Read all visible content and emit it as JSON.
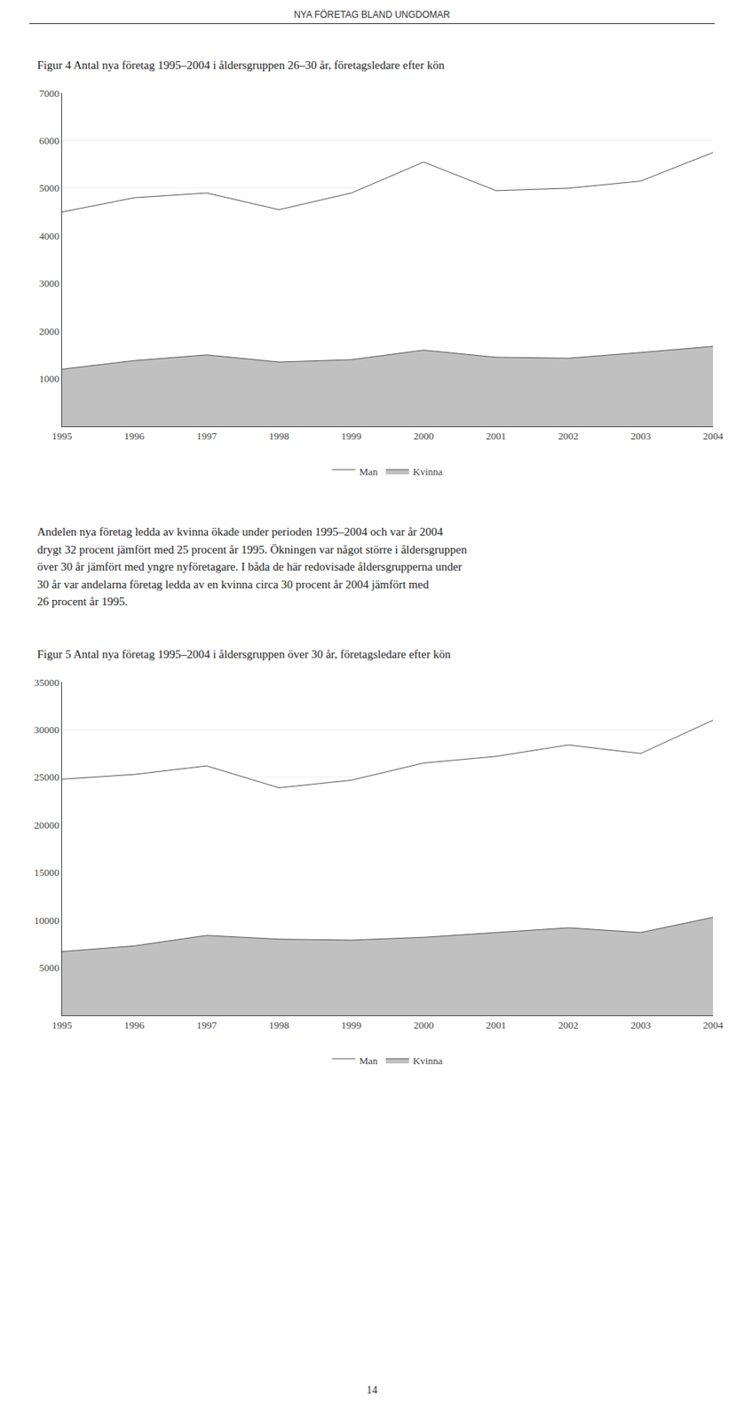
{
  "page_title": "NYA FÖRETAG BLAND UNGDOMAR",
  "body_text": [
    "Andelen nya företag ledda av kvinna ökade under perioden 1995–2004 och var år 2004",
    "drygt 32 procent jämfört med 25 procent år 1995. Ökningen var något större i åldersgruppen",
    "över 30 år jämfört med yngre nyföretagare. I båda de här redovisade åldersgrupperna under",
    "30 år var andelarna företag ledda av en kvinna circa 30 procent år 2004 jämfört med",
    "26 procent år 1995."
  ],
  "page_number": "14",
  "chart_data": [
    {
      "type": "area",
      "title": "Figur 4 Antal nya företag 1995–2004 i åldersgruppen 26–30 år, företagsledare efter kön",
      "x": [
        1995,
        1996,
        1997,
        1998,
        1999,
        2000,
        2001,
        2002,
        2003,
        2004
      ],
      "series": [
        {
          "name": "Kvinna",
          "color": "#c0c0c0",
          "values": [
            1200,
            1380,
            1500,
            1350,
            1400,
            1600,
            1450,
            1430,
            1550,
            1680
          ]
        },
        {
          "name": "Man",
          "color": "#ffffff",
          "values": [
            4500,
            4800,
            4900,
            4550,
            4900,
            5550,
            4950,
            5000,
            5150,
            5750
          ]
        }
      ],
      "xlim": [
        1995,
        2004
      ],
      "xticks": [
        1995,
        1996,
        1997,
        1998,
        1999,
        2000,
        2001,
        2002,
        2003,
        2004
      ],
      "ylim": [
        0,
        7000
      ],
      "yticks": [
        1000,
        2000,
        3000,
        4000,
        5000,
        6000,
        7000
      ],
      "grid": true,
      "legend": "bottom"
    },
    {
      "type": "area",
      "title": "Figur 5 Antal nya företag 1995–2004 i åldersgruppen över 30 år, företagsledare efter kön",
      "x": [
        1995,
        1996,
        1997,
        1998,
        1999,
        2000,
        2001,
        2002,
        2003,
        2004
      ],
      "series": [
        {
          "name": "Kvinna",
          "color": "#c0c0c0",
          "values": [
            6700,
            7300,
            8400,
            8000,
            7900,
            8200,
            8700,
            9200,
            8700,
            10300
          ]
        },
        {
          "name": "Man",
          "color": "#ffffff",
          "values": [
            24800,
            25300,
            26200,
            23900,
            24700,
            26500,
            27200,
            28400,
            27500,
            31000
          ]
        }
      ],
      "xlim": [
        1995,
        2004
      ],
      "xticks": [
        1995,
        1996,
        1997,
        1998,
        1999,
        2000,
        2001,
        2002,
        2003,
        2004
      ],
      "ylim": [
        0,
        35000
      ],
      "yticks": [
        5000,
        10000,
        15000,
        20000,
        25000,
        30000,
        35000
      ],
      "grid": true,
      "legend": "bottom"
    }
  ]
}
